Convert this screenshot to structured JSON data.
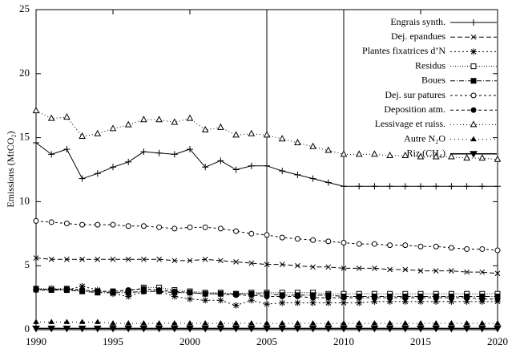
{
  "chart_data": {
    "type": "line",
    "ylabel": "Emissions (MtCO₂)",
    "x": [
      1990,
      1991,
      1992,
      1993,
      1994,
      1995,
      1996,
      1997,
      1998,
      1999,
      2000,
      2001,
      2002,
      2003,
      2004,
      2005,
      2006,
      2007,
      2008,
      2009,
      2010,
      2011,
      2012,
      2013,
      2014,
      2015,
      2016,
      2017,
      2018,
      2019,
      2020
    ],
    "xlim": [
      1990,
      2020
    ],
    "xticks": [
      1990,
      1995,
      2000,
      2005,
      2010,
      2015,
      2020
    ],
    "ylim": [
      0,
      25
    ],
    "yticks": [
      0,
      5,
      10,
      15,
      20,
      25
    ],
    "vlines": [
      2005,
      2010
    ],
    "legend": "top right",
    "series": [
      {
        "name": "Engrais synth.",
        "color": "#000000",
        "marker": "plus",
        "dash": "none",
        "values": [
          14.6,
          13.7,
          14.1,
          11.8,
          12.2,
          12.7,
          13.1,
          13.9,
          13.8,
          13.7,
          14.1,
          12.7,
          13.2,
          12.5,
          12.8,
          12.8,
          12.4,
          12.1,
          11.8,
          11.5,
          11.2,
          11.2,
          11.2,
          11.2,
          11.2,
          11.2,
          11.2,
          11.2,
          11.2,
          11.2,
          11.2
        ]
      },
      {
        "name": "Dej. epandues",
        "color": "#000000",
        "marker": "cross",
        "dash": "6,3",
        "values": [
          5.6,
          5.5,
          5.5,
          5.5,
          5.5,
          5.5,
          5.5,
          5.5,
          5.5,
          5.4,
          5.4,
          5.5,
          5.4,
          5.3,
          5.2,
          5.1,
          5.1,
          5.0,
          4.9,
          4.9,
          4.8,
          4.8,
          4.8,
          4.7,
          4.7,
          4.6,
          4.6,
          4.6,
          4.5,
          4.5,
          4.4
        ]
      },
      {
        "name": "Plantes fixatrices d’N",
        "color": "#000000",
        "marker": "star",
        "dash": "2,3",
        "values": [
          3.1,
          3.2,
          3.1,
          3.4,
          3.1,
          2.8,
          2.6,
          3.0,
          3.0,
          2.6,
          2.4,
          2.3,
          2.3,
          1.9,
          2.3,
          2.0,
          2.1,
          2.1,
          2.1,
          2.1,
          2.1,
          2.1,
          2.2,
          2.2,
          2.2,
          2.2,
          2.2,
          2.2,
          2.2,
          2.2,
          2.2
        ]
      },
      {
        "name": "Residus",
        "color": "#000000",
        "marker": "square-open",
        "dash": "1,2",
        "values": [
          3.2,
          3.2,
          3.2,
          3.0,
          3.0,
          3.0,
          3.0,
          3.3,
          3.3,
          3.1,
          3.0,
          2.9,
          2.9,
          2.8,
          2.9,
          2.9,
          2.9,
          2.9,
          2.9,
          2.8,
          2.8,
          2.8,
          2.8,
          2.8,
          2.8,
          2.8,
          2.8,
          2.8,
          2.8,
          2.8,
          2.8
        ]
      },
      {
        "name": "Boues",
        "color": "#000000",
        "marker": "square",
        "dash": "6,2,1,2",
        "values": [
          3.2,
          3.1,
          3.1,
          3.0,
          2.9,
          2.9,
          2.9,
          3.0,
          3.0,
          2.9,
          2.9,
          2.8,
          2.8,
          2.8,
          2.8,
          2.8,
          2.7,
          2.7,
          2.7,
          2.7,
          2.6,
          2.6,
          2.6,
          2.6,
          2.6,
          2.6,
          2.6,
          2.6,
          2.6,
          2.6,
          2.6
        ]
      },
      {
        "name": "Dej. sur patures",
        "color": "#000000",
        "marker": "circle-open",
        "dash": "3,3",
        "values": [
          8.5,
          8.4,
          8.3,
          8.2,
          8.2,
          8.2,
          8.1,
          8.1,
          8.0,
          7.9,
          8.0,
          8.0,
          7.9,
          7.7,
          7.5,
          7.4,
          7.2,
          7.1,
          7.0,
          6.9,
          6.8,
          6.7,
          6.7,
          6.6,
          6.6,
          6.5,
          6.5,
          6.4,
          6.3,
          6.3,
          6.2
        ]
      },
      {
        "name": "Deposition atm.",
        "color": "#000000",
        "marker": "circle",
        "dash": "4,3",
        "values": [
          3.1,
          3.1,
          3.2,
          3.1,
          3.0,
          3.0,
          3.1,
          3.2,
          3.1,
          3.0,
          2.9,
          2.8,
          2.8,
          2.7,
          2.7,
          2.6,
          2.6,
          2.6,
          2.5,
          2.5,
          2.5,
          2.5,
          2.5,
          2.5,
          2.5,
          2.5,
          2.5,
          2.5,
          2.5,
          2.4,
          2.4
        ]
      },
      {
        "name": "Lessivage et ruiss.",
        "color": "#000000",
        "marker": "triangle-open",
        "dash": "1,3",
        "values": [
          17.1,
          16.5,
          16.6,
          15.1,
          15.3,
          15.7,
          16.0,
          16.4,
          16.4,
          16.2,
          16.5,
          15.6,
          15.8,
          15.2,
          15.3,
          15.2,
          14.9,
          14.6,
          14.3,
          14.0,
          13.7,
          13.7,
          13.7,
          13.6,
          13.6,
          13.5,
          13.5,
          13.5,
          13.4,
          13.4,
          13.3
        ]
      },
      {
        "name": "Autre N₂O",
        "color": "#000000",
        "marker": "triangle",
        "dash": "1,4",
        "values": [
          0.6,
          0.6,
          0.6,
          0.6,
          0.6,
          0.5,
          0.5,
          0.5,
          0.5,
          0.5,
          0.5,
          0.5,
          0.5,
          0.5,
          0.5,
          0.5,
          0.5,
          0.5,
          0.5,
          0.5,
          0.5,
          0.5,
          0.5,
          0.5,
          0.5,
          0.5,
          0.5,
          0.5,
          0.5,
          0.5,
          0.5
        ]
      },
      {
        "name": "Riz (CH₄)",
        "color": "#000000",
        "marker": "triangle-down",
        "dash": "none",
        "values": [
          0.1,
          0.1,
          0.1,
          0.1,
          0.1,
          0.1,
          0.1,
          0.1,
          0.1,
          0.1,
          0.1,
          0.1,
          0.1,
          0.1,
          0.1,
          0.1,
          0.1,
          0.1,
          0.1,
          0.1,
          0.1,
          0.1,
          0.1,
          0.1,
          0.1,
          0.1,
          0.1,
          0.1,
          0.1,
          0.1,
          0.1
        ]
      }
    ]
  }
}
